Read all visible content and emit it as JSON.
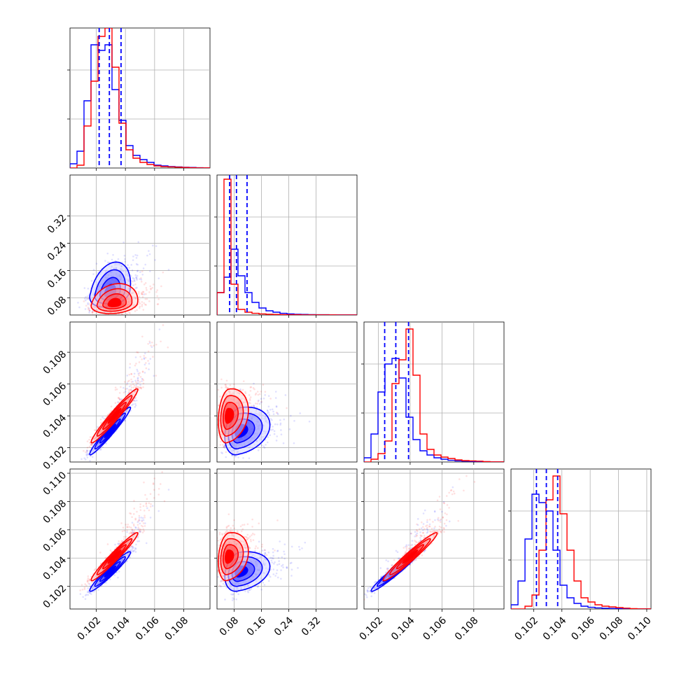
{
  "chart_data": {
    "type": "corner",
    "parameters": [
      {
        "lim": [
          0.1002,
          0.1098
        ],
        "ticks": [
          0.102,
          0.104,
          0.106,
          0.108
        ],
        "tick_labels": [
          "0.102",
          "0.104",
          "0.106",
          "0.108"
        ]
      },
      {
        "lim": [
          0.03,
          0.44
        ],
        "ticks": [
          0.08,
          0.16,
          0.24,
          0.32
        ],
        "tick_labels": [
          "0.08",
          "0.16",
          "0.24",
          "0.32"
        ]
      },
      {
        "lim": [
          0.1011,
          0.1099
        ],
        "ticks": [
          0.102,
          0.104,
          0.106,
          0.108
        ],
        "tick_labels": [
          "0.102",
          "0.104",
          "0.106",
          "0.108"
        ]
      },
      {
        "lim": [
          0.1004,
          0.1103
        ],
        "ticks": [
          0.102,
          0.104,
          0.106,
          0.108,
          0.11
        ],
        "tick_labels": [
          "0.102",
          "0.104",
          "0.106",
          "0.108",
          "0.110"
        ]
      }
    ],
    "grid": true,
    "colors": {
      "a": "#0000ff",
      "b": "#ff0000"
    },
    "series": [
      {
        "color": "#0000ff",
        "mean": [
          0.10295,
          0.095,
          0.10305,
          0.10305
        ],
        "sd": [
          0.0007,
          0.03,
          0.00075,
          0.0007
        ],
        "corr": [
          [
            1,
            0.3,
            0.97,
            0.96
          ],
          [
            0.3,
            1,
            0.25,
            0.25
          ],
          [
            0.97,
            0.25,
            1,
            0.97
          ],
          [
            0.96,
            0.25,
            0.97,
            1
          ]
        ],
        "quantiles": [
          [
            0.1022,
            0.1029,
            0.1037
          ],
          [
            0.067,
            0.087,
            0.118
          ],
          [
            0.1024,
            0.1031,
            0.1039
          ],
          [
            0.1022,
            0.1029,
            0.1037
          ]
        ],
        "hist": [
          {
            "edges": [
              0.1002,
              0.1098
            ],
            "counts": [
              0.03,
              0.12,
              0.48,
              0.88,
              0.84,
              0.88,
              0.56,
              0.34,
              0.16,
              0.09,
              0.06,
              0.04,
              0.02,
              0.015,
              0.01,
              0.008,
              0.005,
              0.004,
              0.002,
              0.001
            ]
          },
          {
            "edges": [
              0.03,
              0.44
            ],
            "counts": [
              0.16,
              0.27,
              0.47,
              0.28,
              0.16,
              0.09,
              0.05,
              0.03,
              0.02,
              0.012,
              0.008,
              0.005,
              0.004,
              0.003,
              0.002,
              0.002,
              0.001,
              0.001,
              0.001,
              0.001
            ]
          },
          {
            "edges": [
              0.1011,
              0.1099
            ],
            "counts": [
              0.03,
              0.2,
              0.5,
              0.7,
              0.74,
              0.6,
              0.32,
              0.16,
              0.08,
              0.05,
              0.03,
              0.02,
              0.012,
              0.008,
              0.006,
              0.004,
              0.003,
              0.002,
              0.001,
              0.001
            ]
          },
          {
            "edges": [
              0.1004,
              0.1103
            ],
            "counts": [
              0.03,
              0.2,
              0.5,
              0.82,
              0.76,
              0.7,
              0.42,
              0.17,
              0.08,
              0.04,
              0.02,
              0.012,
              0.008,
              0.005,
              0.004,
              0.003,
              0.002,
              0.001,
              0.001,
              0.001
            ]
          }
        ]
      },
      {
        "color": "#ff0000",
        "mean": [
          0.10325,
          0.062,
          0.104,
          0.1041
        ],
        "sd": [
          0.0008,
          0.02,
          0.00085,
          0.00085
        ],
        "corr": [
          [
            1,
            0.2,
            0.97,
            0.97
          ],
          [
            0.2,
            1,
            0.2,
            0.2
          ],
          [
            0.97,
            0.2,
            1,
            0.97
          ],
          [
            0.97,
            0.2,
            0.97,
            1
          ]
        ],
        "hist": [
          {
            "edges": [
              0.1002,
              0.1098
            ],
            "counts": [
              0,
              0.02,
              0.3,
              0.62,
              0.94,
              1.0,
              0.72,
              0.32,
              0.13,
              0.07,
              0.04,
              0.025,
              0.015,
              0.01,
              0.008,
              0.006,
              0.004,
              0.002,
              0.001,
              0.001
            ]
          },
          {
            "edges": [
              0.03,
              0.44
            ],
            "counts": [
              0.16,
              0.97,
              0.22,
              0.04,
              0.02,
              0.012,
              0.008,
              0.005,
              0.004,
              0.003,
              0.002,
              0.002,
              0.001,
              0.001,
              0.001,
              0.001,
              0.001,
              0,
              0,
              0
            ]
          },
          {
            "edges": [
              0.1011,
              0.1099
            ],
            "counts": [
              0,
              0.02,
              0.06,
              0.15,
              0.56,
              0.73,
              0.95,
              0.62,
              0.2,
              0.09,
              0.05,
              0.035,
              0.025,
              0.015,
              0.01,
              0.008,
              0.006,
              0.003,
              0.001,
              0.001
            ]
          },
          {
            "edges": [
              0.1004,
              0.1103
            ],
            "counts": [
              0,
              0,
              0.02,
              0.1,
              0.42,
              0.78,
              0.95,
              0.68,
              0.42,
              0.2,
              0.08,
              0.05,
              0.03,
              0.02,
              0.015,
              0.01,
              0.006,
              0.003,
              0.001,
              0.001
            ]
          }
        ]
      }
    ]
  }
}
